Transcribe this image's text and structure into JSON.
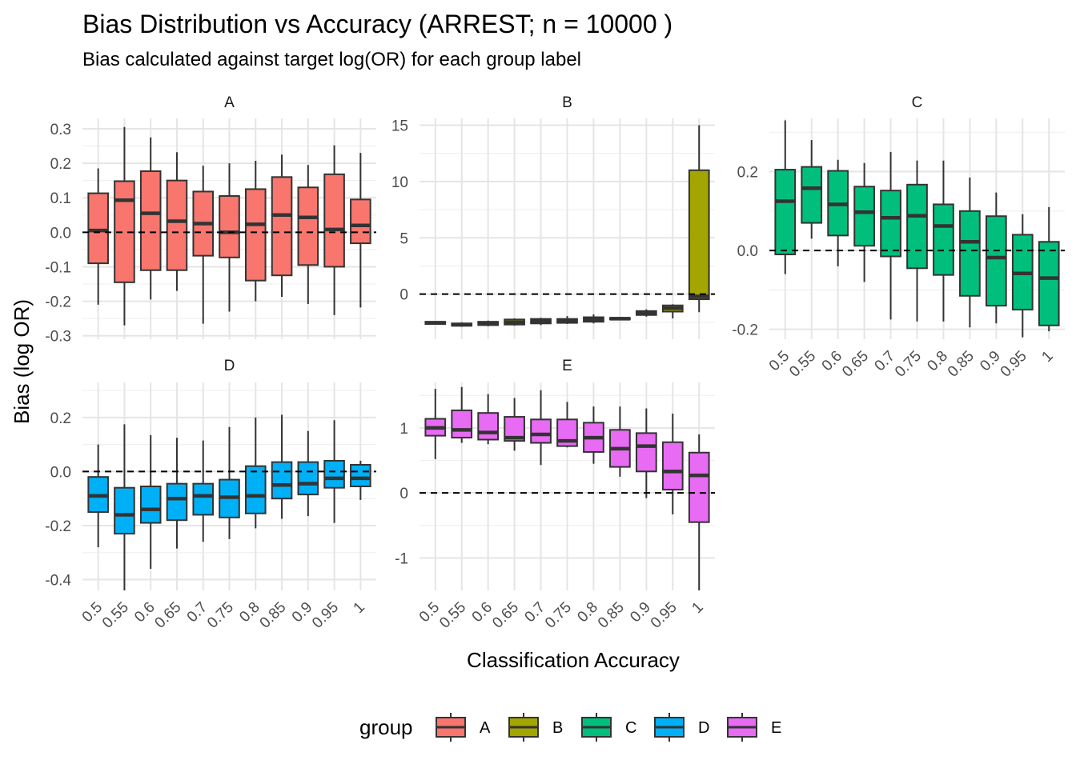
{
  "chart_data": {
    "type": "boxplot",
    "title": "Bias Distribution vs Accuracy (ARREST; n = 10000 )",
    "subtitle": "Bias calculated against target log(OR) for each group label",
    "xlabel": "Classification Accuracy",
    "ylabel": "Bias (log OR)",
    "categories": [
      "0.5",
      "0.55",
      "0.6",
      "0.65",
      "0.7",
      "0.75",
      "0.8",
      "0.85",
      "0.9",
      "0.95",
      "1"
    ],
    "legend": {
      "title": "group",
      "position": "bottom",
      "entries": [
        "A",
        "B",
        "C",
        "D",
        "E"
      ]
    },
    "reference_line": {
      "y": 0,
      "style": "dashed"
    },
    "grid": true,
    "facets": [
      {
        "label": "A",
        "color": "#F8766D",
        "ylim": [
          -0.31,
          0.33
        ],
        "yticks": [
          -0.3,
          -0.2,
          -0.1,
          0.0,
          0.1,
          0.2,
          0.3
        ],
        "ytick_labels": [
          "-0.3",
          "-0.2",
          "-0.1",
          "0.0",
          "0.1",
          "0.2",
          "0.3"
        ],
        "boxes": [
          {
            "min": -0.21,
            "q1": -0.09,
            "median": 0.005,
            "q3": 0.113,
            "max": 0.185
          },
          {
            "min": -0.27,
            "q1": -0.145,
            "median": 0.093,
            "q3": 0.148,
            "max": 0.305
          },
          {
            "min": -0.195,
            "q1": -0.11,
            "median": 0.055,
            "q3": 0.177,
            "max": 0.275
          },
          {
            "min": -0.17,
            "q1": -0.11,
            "median": 0.032,
            "q3": 0.15,
            "max": 0.232
          },
          {
            "min": -0.265,
            "q1": -0.068,
            "median": 0.025,
            "q3": 0.118,
            "max": 0.193
          },
          {
            "min": -0.23,
            "q1": -0.073,
            "median": 0.0,
            "q3": 0.105,
            "max": 0.2
          },
          {
            "min": -0.2,
            "q1": -0.14,
            "median": 0.023,
            "q3": 0.125,
            "max": 0.207
          },
          {
            "min": -0.187,
            "q1": -0.125,
            "median": 0.05,
            "q3": 0.16,
            "max": 0.225
          },
          {
            "min": -0.208,
            "q1": -0.095,
            "median": 0.043,
            "q3": 0.13,
            "max": 0.195
          },
          {
            "min": -0.24,
            "q1": -0.1,
            "median": 0.008,
            "q3": 0.168,
            "max": 0.252
          },
          {
            "min": -0.218,
            "q1": -0.032,
            "median": 0.02,
            "q3": 0.095,
            "max": 0.23
          }
        ]
      },
      {
        "label": "B",
        "color": "#A3A500",
        "ylim": [
          -4.0,
          15.6
        ],
        "yticks": [
          0,
          5,
          10,
          15
        ],
        "ytick_labels": [
          "0",
          "5",
          "10",
          "15"
        ],
        "boxes": [
          {
            "min": -2.65,
            "q1": -2.65,
            "median": -2.55,
            "q3": -2.45,
            "max": -2.45
          },
          {
            "min": -2.9,
            "q1": -2.8,
            "median": -2.72,
            "q3": -2.6,
            "max": -2.5
          },
          {
            "min": -2.85,
            "q1": -2.75,
            "median": -2.62,
            "q3": -2.45,
            "max": -2.35
          },
          {
            "min": -2.8,
            "q1": -2.7,
            "median": -2.5,
            "q3": -2.25,
            "max": -2.15
          },
          {
            "min": -2.75,
            "q1": -2.6,
            "median": -2.42,
            "q3": -2.2,
            "max": -2.1
          },
          {
            "min": -2.65,
            "q1": -2.55,
            "median": -2.4,
            "q3": -2.2,
            "max": -1.95
          },
          {
            "min": -2.6,
            "q1": -2.45,
            "median": -2.28,
            "q3": -2.05,
            "max": -1.8
          },
          {
            "min": -2.3,
            "q1": -2.25,
            "median": -2.18,
            "q3": -2.1,
            "max": -2.05
          },
          {
            "min": -2.0,
            "q1": -1.85,
            "median": -1.68,
            "q3": -1.5,
            "max": -1.35
          },
          {
            "min": -2.15,
            "q1": -1.55,
            "median": -1.25,
            "q3": -1.0,
            "max": -0.9
          },
          {
            "min": -1.6,
            "q1": -0.45,
            "median": -0.2,
            "q3": 11.0,
            "max": 15.0
          }
        ]
      },
      {
        "label": "C",
        "color": "#00BF7D",
        "ylim": [
          -0.225,
          0.335
        ],
        "yticks": [
          -0.2,
          0.0,
          0.2
        ],
        "ytick_labels": [
          "-0.2",
          "0.0",
          "0.2"
        ],
        "boxes": [
          {
            "min": -0.06,
            "q1": -0.01,
            "median": 0.125,
            "q3": 0.205,
            "max": 0.33
          },
          {
            "min": 0.03,
            "q1": 0.07,
            "median": 0.158,
            "q3": 0.212,
            "max": 0.28
          },
          {
            "min": -0.04,
            "q1": 0.038,
            "median": 0.117,
            "q3": 0.202,
            "max": 0.23
          },
          {
            "min": -0.08,
            "q1": 0.012,
            "median": 0.097,
            "q3": 0.162,
            "max": 0.222
          },
          {
            "min": -0.175,
            "q1": -0.015,
            "median": 0.083,
            "q3": 0.152,
            "max": 0.25
          },
          {
            "min": -0.18,
            "q1": -0.045,
            "median": 0.088,
            "q3": 0.167,
            "max": 0.228
          },
          {
            "min": -0.18,
            "q1": -0.062,
            "median": 0.062,
            "q3": 0.117,
            "max": 0.228
          },
          {
            "min": -0.195,
            "q1": -0.115,
            "median": 0.022,
            "q3": 0.1,
            "max": 0.185
          },
          {
            "min": -0.185,
            "q1": -0.14,
            "median": -0.018,
            "q3": 0.087,
            "max": 0.147
          },
          {
            "min": -0.22,
            "q1": -0.15,
            "median": -0.058,
            "q3": 0.04,
            "max": 0.092
          },
          {
            "min": -0.205,
            "q1": -0.19,
            "median": -0.07,
            "q3": 0.022,
            "max": 0.11
          }
        ]
      },
      {
        "label": "D",
        "color": "#00B0F6",
        "ylim": [
          -0.44,
          0.33
        ],
        "yticks": [
          -0.4,
          -0.2,
          0.0,
          0.2
        ],
        "ytick_labels": [
          "-0.4",
          "-0.2",
          "0.0",
          "0.2"
        ],
        "boxes": [
          {
            "min": -0.28,
            "q1": -0.15,
            "median": -0.09,
            "q3": -0.02,
            "max": 0.1
          },
          {
            "min": -0.44,
            "q1": -0.23,
            "median": -0.16,
            "q3": -0.06,
            "max": 0.175
          },
          {
            "min": -0.36,
            "q1": -0.19,
            "median": -0.14,
            "q3": -0.055,
            "max": 0.135
          },
          {
            "min": -0.285,
            "q1": -0.18,
            "median": -0.1,
            "q3": -0.045,
            "max": 0.125
          },
          {
            "min": -0.26,
            "q1": -0.16,
            "median": -0.09,
            "q3": -0.045,
            "max": 0.115
          },
          {
            "min": -0.25,
            "q1": -0.17,
            "median": -0.095,
            "q3": -0.03,
            "max": 0.165
          },
          {
            "min": -0.21,
            "q1": -0.155,
            "median": -0.09,
            "q3": 0.02,
            "max": 0.2
          },
          {
            "min": -0.175,
            "q1": -0.1,
            "median": -0.05,
            "q3": 0.035,
            "max": 0.21
          },
          {
            "min": -0.165,
            "q1": -0.085,
            "median": -0.045,
            "q3": 0.035,
            "max": 0.15
          },
          {
            "min": -0.19,
            "q1": -0.06,
            "median": -0.025,
            "q3": 0.04,
            "max": 0.19
          },
          {
            "min": -0.105,
            "q1": -0.055,
            "median": -0.025,
            "q3": 0.025,
            "max": 0.04
          }
        ]
      },
      {
        "label": "E",
        "color": "#E76BF3",
        "ylim": [
          -1.5,
          1.7
        ],
        "yticks": [
          -1,
          0,
          1
        ],
        "ytick_labels": [
          "-1",
          "0",
          "1"
        ],
        "boxes": [
          {
            "min": 0.52,
            "q1": 0.88,
            "median": 1.0,
            "q3": 1.14,
            "max": 1.6
          },
          {
            "min": 0.77,
            "q1": 0.85,
            "median": 0.97,
            "q3": 1.27,
            "max": 1.63
          },
          {
            "min": 0.75,
            "q1": 0.82,
            "median": 0.93,
            "q3": 1.23,
            "max": 1.52
          },
          {
            "min": 0.65,
            "q1": 0.8,
            "median": 0.85,
            "q3": 1.17,
            "max": 1.46
          },
          {
            "min": 0.43,
            "q1": 0.77,
            "median": 0.9,
            "q3": 1.13,
            "max": 1.58
          },
          {
            "min": 0.7,
            "q1": 0.72,
            "median": 0.8,
            "q3": 1.13,
            "max": 1.4
          },
          {
            "min": 0.45,
            "q1": 0.63,
            "median": 0.85,
            "q3": 1.08,
            "max": 1.33
          },
          {
            "min": 0.25,
            "q1": 0.4,
            "median": 0.68,
            "q3": 0.97,
            "max": 1.33
          },
          {
            "min": -0.08,
            "q1": 0.33,
            "median": 0.72,
            "q3": 0.92,
            "max": 1.3
          },
          {
            "min": -0.33,
            "q1": 0.05,
            "median": 0.33,
            "q3": 0.78,
            "max": 1.22
          },
          {
            "min": -1.5,
            "q1": -0.45,
            "median": 0.27,
            "q3": 0.62,
            "max": 0.9
          }
        ]
      }
    ]
  }
}
